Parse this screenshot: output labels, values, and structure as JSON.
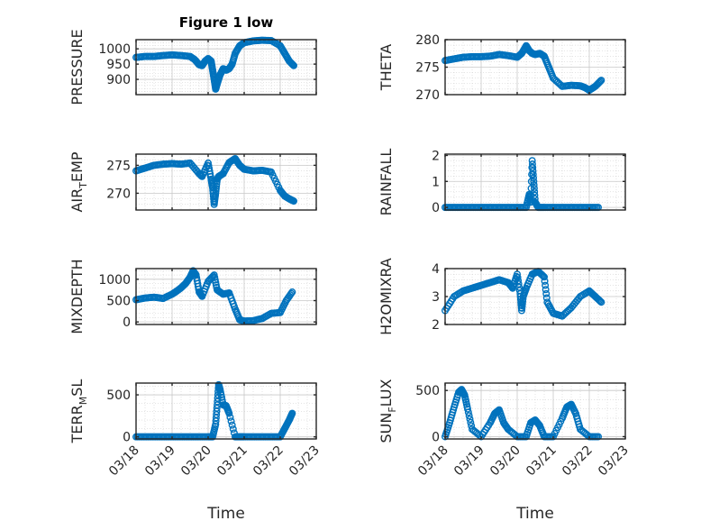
{
  "title": "Figure 1 low",
  "xlabel": "Time",
  "x_tick_labels": [
    "03/18",
    "03/19",
    "03/20",
    "03/21",
    "03/22",
    "03/23"
  ],
  "colors": {
    "marker": "#0072BD",
    "axes": "#262626",
    "grid": "#c8c8c8"
  },
  "chart_data": [
    {
      "type": "scatter",
      "ylabel": "PRESSURE",
      "ylabel_sub": "",
      "ylim": [
        850,
        1030
      ],
      "yticks": [
        900,
        950,
        1000
      ],
      "yticklabels": [
        "900",
        "950",
        "1000"
      ],
      "grid": true,
      "marker": "circle",
      "x": [
        "03/18 00:00",
        "03/18 06:00",
        "03/18 12:00",
        "03/18 18:00",
        "03/19 00:00",
        "03/19 06:00",
        "03/19 12:00",
        "03/19 15:00",
        "03/19 18:00",
        "03/19 20:00",
        "03/19 22:00",
        "03/20 00:00",
        "03/20 02:00",
        "03/20 03:00",
        "03/20 04:00",
        "03/20 05:00",
        "03/20 06:00",
        "03/20 08:00",
        "03/20 10:00",
        "03/20 12:00",
        "03/20 14:00",
        "03/20 16:00",
        "03/20 18:00",
        "03/20 21:00",
        "03/21 00:00",
        "03/21 06:00",
        "03/21 12:00",
        "03/21 18:00",
        "03/22 00:00",
        "03/22 03:00",
        "03/22 06:00",
        "03/22 09:00"
      ],
      "y": [
        972,
        975,
        975,
        978,
        980,
        978,
        975,
        965,
        948,
        945,
        960,
        968,
        960,
        930,
        900,
        868,
        885,
        915,
        935,
        930,
        935,
        950,
        985,
        1010,
        1020,
        1026,
        1028,
        1027,
        1010,
        985,
        960,
        945
      ]
    },
    {
      "type": "scatter",
      "ylabel": "THETA",
      "ylabel_sub": "",
      "ylim": [
        270,
        280
      ],
      "yticks": [
        270,
        275,
        280
      ],
      "yticklabels": [
        "270",
        "275",
        "280"
      ],
      "grid": true,
      "marker": "circle",
      "x": [
        "03/18 00:00",
        "03/18 06:00",
        "03/18 12:00",
        "03/18 18:00",
        "03/19 00:00",
        "03/19 06:00",
        "03/19 12:00",
        "03/19 18:00",
        "03/20 00:00",
        "03/20 03:00",
        "03/20 06:00",
        "03/20 08:00",
        "03/20 10:00",
        "03/20 12:00",
        "03/20 15:00",
        "03/20 18:00",
        "03/20 21:00",
        "03/21 00:00",
        "03/21 06:00",
        "03/21 12:00",
        "03/21 18:00",
        "03/21 21:00",
        "03/22 00:00",
        "03/22 04:00",
        "03/22 08:00"
      ],
      "y": [
        276.2,
        276.5,
        276.8,
        276.9,
        276.9,
        277.0,
        277.3,
        277.1,
        276.8,
        277.5,
        278.9,
        278.0,
        277.5,
        277.3,
        277.5,
        277.0,
        275.0,
        273.0,
        271.5,
        271.7,
        271.6,
        271.3,
        270.8,
        271.5,
        272.6
      ]
    },
    {
      "type": "scatter",
      "ylabel": "AIR",
      "ylabel_sub": "T",
      "ylabel_suffix": "EMP",
      "ylim": [
        267,
        277
      ],
      "yticks": [
        270,
        275
      ],
      "yticklabels": [
        "270",
        "275"
      ],
      "grid": true,
      "marker": "circle",
      "x": [
        "03/18 00:00",
        "03/18 06:00",
        "03/18 12:00",
        "03/18 18:00",
        "03/19 00:00",
        "03/19 06:00",
        "03/19 12:00",
        "03/19 18:00",
        "03/19 20:00",
        "03/20 00:00",
        "03/20 02:00",
        "03/20 03:00",
        "03/20 04:00",
        "03/20 05:00",
        "03/20 06:00",
        "03/20 07:00",
        "03/20 10:00",
        "03/20 14:00",
        "03/20 18:00",
        "03/20 21:00",
        "03/21 00:00",
        "03/21 06:00",
        "03/21 12:00",
        "03/21 18:00",
        "03/22 00:00",
        "03/22 03:00",
        "03/22 06:00",
        "03/22 09:00"
      ],
      "y": [
        274.0,
        274.5,
        275.0,
        275.2,
        275.3,
        275.2,
        275.4,
        273.5,
        273.0,
        275.4,
        272.5,
        271.0,
        268.0,
        270.0,
        272.5,
        273.0,
        273.5,
        275.5,
        276.2,
        275.0,
        274.3,
        274.0,
        274.1,
        273.8,
        270.5,
        269.5,
        269.0,
        268.6
      ]
    },
    {
      "type": "scatter",
      "ylabel": "RAINFALL",
      "ylabel_sub": "",
      "ylim": [
        -0.1,
        2.05
      ],
      "yticks": [
        0,
        1,
        2
      ],
      "yticklabels": [
        "0",
        "1",
        "2"
      ],
      "grid": true,
      "marker": "circle",
      "x": [
        "03/18 00:00",
        "03/18 06:00",
        "03/18 12:00",
        "03/18 18:00",
        "03/19 00:00",
        "03/19 06:00",
        "03/19 12:00",
        "03/19 18:00",
        "03/20 00:00",
        "03/20 06:00",
        "03/20 08:00",
        "03/20 09:00",
        "03/20 10:00",
        "03/20 11:00",
        "03/20 12:00",
        "03/20 14:00",
        "03/20 18:00",
        "03/21 00:00",
        "03/21 06:00",
        "03/21 12:00",
        "03/21 18:00",
        "03/22 00:00",
        "03/22 06:00"
      ],
      "y": [
        0,
        0,
        0,
        0,
        0,
        0,
        0,
        0,
        0,
        0,
        0.5,
        0.2,
        1.8,
        1.0,
        0.2,
        0,
        0,
        0,
        0,
        0,
        0,
        0,
        0
      ]
    },
    {
      "type": "scatter",
      "ylabel": "MIXDEPTH",
      "ylabel_sub": "",
      "ylim": [
        -60,
        1250
      ],
      "yticks": [
        0,
        500,
        1000
      ],
      "yticklabels": [
        "0",
        "500",
        "1000"
      ],
      "grid": true,
      "marker": "circle",
      "x": [
        "03/18 00:00",
        "03/18 06:00",
        "03/18 12:00",
        "03/18 18:00",
        "03/19 00:00",
        "03/19 03:00",
        "03/19 06:00",
        "03/19 09:00",
        "03/19 12:00",
        "03/19 14:00",
        "03/19 16:00",
        "03/19 18:00",
        "03/19 20:00",
        "03/20 00:00",
        "03/20 04:00",
        "03/20 06:00",
        "03/20 10:00",
        "03/20 14:00",
        "03/20 18:00",
        "03/20 21:00",
        "03/21 00:00",
        "03/21 06:00",
        "03/21 12:00",
        "03/21 18:00",
        "03/22 00:00",
        "03/22 04:00",
        "03/22 08:00"
      ],
      "y": [
        520,
        560,
        580,
        550,
        650,
        720,
        800,
        900,
        1050,
        1200,
        1100,
        700,
        600,
        950,
        1100,
        750,
        650,
        680,
        300,
        50,
        20,
        30,
        80,
        200,
        220,
        500,
        700
      ]
    },
    {
      "type": "scatter",
      "ylabel": "H2OMIXRA",
      "ylabel_sub": "",
      "ylim": [
        2,
        4
      ],
      "yticks": [
        2,
        3,
        4
      ],
      "yticklabels": [
        "2",
        "3",
        "4"
      ],
      "grid": true,
      "marker": "circle",
      "x": [
        "03/18 00:00",
        "03/18 06:00",
        "03/18 12:00",
        "03/18 18:00",
        "03/19 00:00",
        "03/19 06:00",
        "03/19 12:00",
        "03/19 18:00",
        "03/19 21:00",
        "03/20 00:00",
        "03/20 02:00",
        "03/20 03:00",
        "03/20 04:00",
        "03/20 06:00",
        "03/20 10:00",
        "03/20 14:00",
        "03/20 18:00",
        "03/20 20:00",
        "03/21 00:00",
        "03/21 06:00",
        "03/21 12:00",
        "03/21 18:00",
        "03/22 00:00",
        "03/22 04:00",
        "03/22 08:00"
      ],
      "y": [
        2.5,
        3.0,
        3.2,
        3.3,
        3.4,
        3.5,
        3.6,
        3.5,
        3.3,
        3.8,
        3.1,
        2.5,
        3.0,
        3.3,
        3.8,
        3.9,
        3.7,
        2.8,
        2.4,
        2.3,
        2.6,
        3.0,
        3.2,
        3.0,
        2.8
      ]
    },
    {
      "type": "scatter",
      "ylabel": "TERR",
      "ylabel_sub": "M",
      "ylabel_suffix": "SL",
      "ylim": [
        -25,
        640
      ],
      "yticks": [
        0,
        500
      ],
      "yticklabels": [
        "0",
        "500"
      ],
      "grid": true,
      "marker": "circle",
      "x": [
        "03/18 00:00",
        "03/18 06:00",
        "03/18 12:00",
        "03/18 18:00",
        "03/19 00:00",
        "03/19 06:00",
        "03/19 12:00",
        "03/19 18:00",
        "03/20 00:00",
        "03/20 03:00",
        "03/20 05:00",
        "03/20 06:00",
        "03/20 07:00",
        "03/20 08:00",
        "03/20 10:00",
        "03/20 12:00",
        "03/20 14:00",
        "03/20 18:00",
        "03/20 21:00",
        "03/21 00:00",
        "03/21 06:00",
        "03/21 12:00",
        "03/21 18:00",
        "03/22 00:00",
        "03/22 03:00",
        "03/22 06:00",
        "03/22 08:00"
      ],
      "y": [
        0,
        0,
        0,
        0,
        0,
        0,
        0,
        0,
        0,
        0,
        150,
        380,
        620,
        560,
        380,
        370,
        280,
        0,
        0,
        0,
        0,
        0,
        0,
        0,
        100,
        200,
        280
      ]
    },
    {
      "type": "scatter",
      "ylabel": "SUN",
      "ylabel_sub": "F",
      "ylabel_suffix": "LUX",
      "ylim": [
        -25,
        580
      ],
      "yticks": [
        0,
        500
      ],
      "yticklabels": [
        "0",
        "500"
      ],
      "grid": true,
      "marker": "circle",
      "x": [
        "03/18 00:00",
        "03/18 03:00",
        "03/18 06:00",
        "03/18 09:00",
        "03/18 11:00",
        "03/18 13:00",
        "03/18 15:00",
        "03/18 18:00",
        "03/19 00:00",
        "03/19 06:00",
        "03/19 09:00",
        "03/19 12:00",
        "03/19 15:00",
        "03/19 18:00",
        "03/20 00:00",
        "03/20 06:00",
        "03/20 09:00",
        "03/20 12:00",
        "03/20 15:00",
        "03/20 18:00",
        "03/21 00:00",
        "03/21 06:00",
        "03/21 09:00",
        "03/21 12:00",
        "03/21 15:00",
        "03/21 18:00",
        "03/22 00:00",
        "03/22 06:00"
      ],
      "y": [
        0,
        150,
        320,
        480,
        510,
        450,
        300,
        80,
        0,
        150,
        250,
        290,
        150,
        80,
        0,
        0,
        150,
        180,
        120,
        0,
        0,
        200,
        320,
        350,
        250,
        80,
        0,
        0
      ]
    }
  ]
}
